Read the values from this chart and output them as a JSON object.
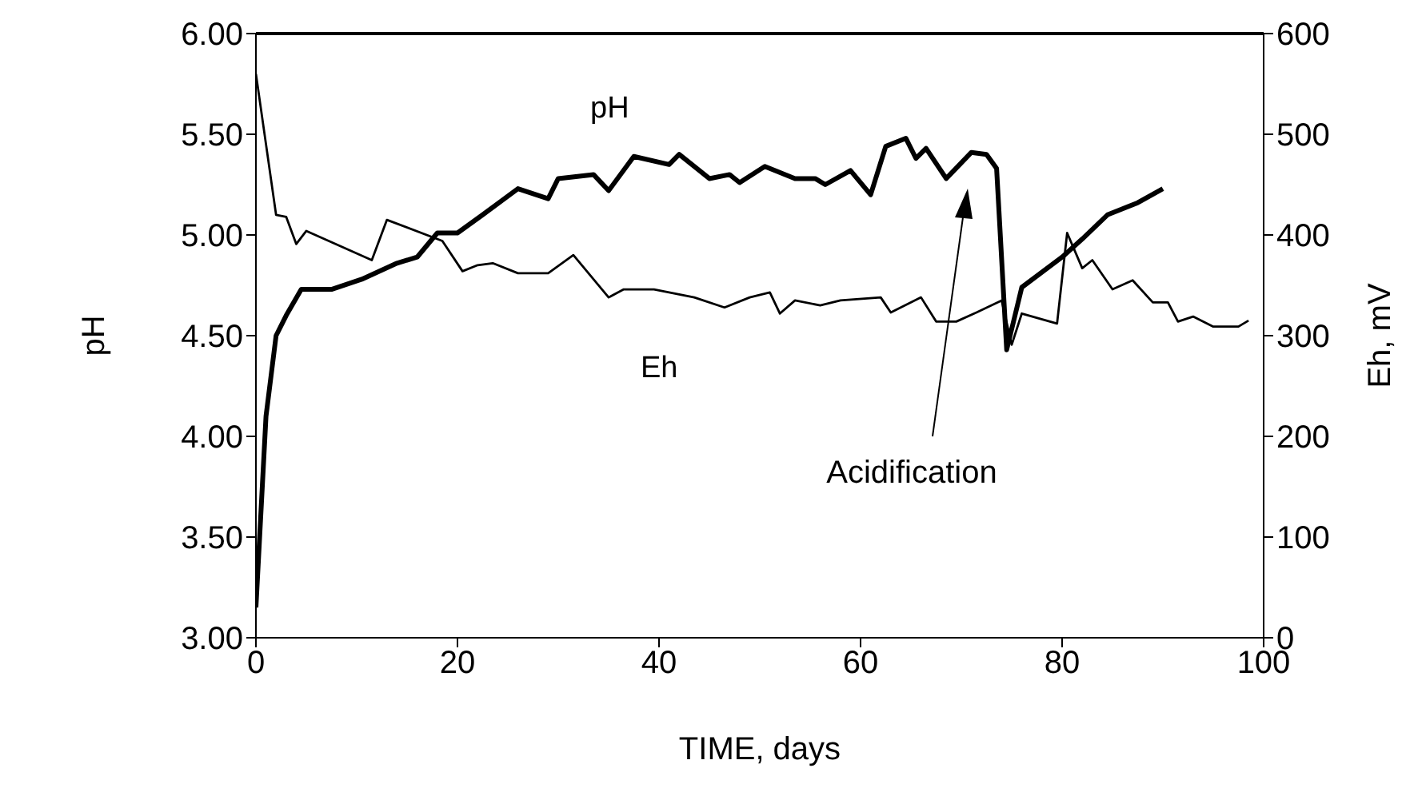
{
  "chart_data": {
    "type": "line",
    "xlabel": "TIME, days",
    "ylabel": "pH",
    "y2label": "Eh, mV",
    "xlim": [
      0,
      100
    ],
    "xticks": [
      0,
      20,
      40,
      60,
      80,
      100
    ],
    "ylim": [
      3,
      6
    ],
    "yticks": [
      {
        "value": 3,
        "label": "3.00"
      },
      {
        "value": 3.5,
        "label": "3.50"
      },
      {
        "value": 4,
        "label": "4.00"
      },
      {
        "value": 4.5,
        "label": "4.50"
      },
      {
        "value": 5,
        "label": "5.00"
      },
      {
        "value": 5.5,
        "label": "5.50"
      },
      {
        "value": 6,
        "label": "6.00"
      }
    ],
    "y2lim": [
      0,
      600
    ],
    "y2ticks": [
      0,
      100,
      200,
      300,
      400,
      500,
      600
    ],
    "series": [
      {
        "name": "pH",
        "color": "#000000",
        "x": [
          0,
          1,
          2,
          3,
          4.5,
          7.5,
          10.5,
          14,
          16,
          18,
          20,
          22.5,
          26,
          29,
          30,
          33.5,
          35,
          37.5,
          41,
          42,
          45,
          47,
          48,
          50.5,
          53.5,
          55.5,
          56.5,
          59,
          61,
          62.5,
          64.5,
          65.5,
          66.5,
          68.5,
          71,
          72.5,
          73.5,
          74.5,
          76,
          80,
          82,
          84.5,
          85.5,
          87.5,
          90
        ],
        "values": [
          3.15,
          4.1,
          4.5,
          4.6,
          4.73,
          4.73,
          4.78,
          4.86,
          4.89,
          5.01,
          5.01,
          5.1,
          5.23,
          5.18,
          5.28,
          5.3,
          5.22,
          5.39,
          5.35,
          5.4,
          5.28,
          5.3,
          5.26,
          5.34,
          5.28,
          5.28,
          5.25,
          5.32,
          5.2,
          5.44,
          5.48,
          5.38,
          5.43,
          5.28,
          5.41,
          5.4,
          5.33,
          4.43,
          4.74,
          4.89,
          4.98,
          5.1,
          5.12,
          5.16,
          5.23
        ]
      },
      {
        "name": "Eh",
        "color": "#000000",
        "axis": "y2",
        "x": [
          0,
          2,
          3,
          4,
          5,
          11.5,
          13,
          18.5,
          20.5,
          22,
          23.5,
          26,
          29,
          31.5,
          35,
          36.5,
          39.5,
          43.5,
          46.5,
          49,
          51,
          52,
          53.5,
          56,
          58,
          62,
          63,
          66,
          67.5,
          69.5,
          71.5,
          74,
          75,
          76,
          79.5,
          80.5,
          82,
          83,
          85,
          87,
          89,
          90.5,
          91.5,
          93,
          95,
          97.5,
          98.5
        ],
        "values": [
          560,
          420,
          418,
          391,
          404,
          375,
          415,
          394,
          364,
          370,
          372,
          362,
          362,
          380,
          338,
          346,
          346,
          338,
          328,
          338,
          343,
          322,
          335,
          330,
          335,
          338,
          323,
          338,
          314,
          314,
          323,
          335,
          291,
          322,
          312,
          402,
          367,
          375,
          346,
          355,
          333,
          333,
          314,
          319,
          309,
          309,
          315
        ]
      }
    ],
    "annotations": [
      "Acidification"
    ],
    "line_style": "solid",
    "marker": "none"
  }
}
